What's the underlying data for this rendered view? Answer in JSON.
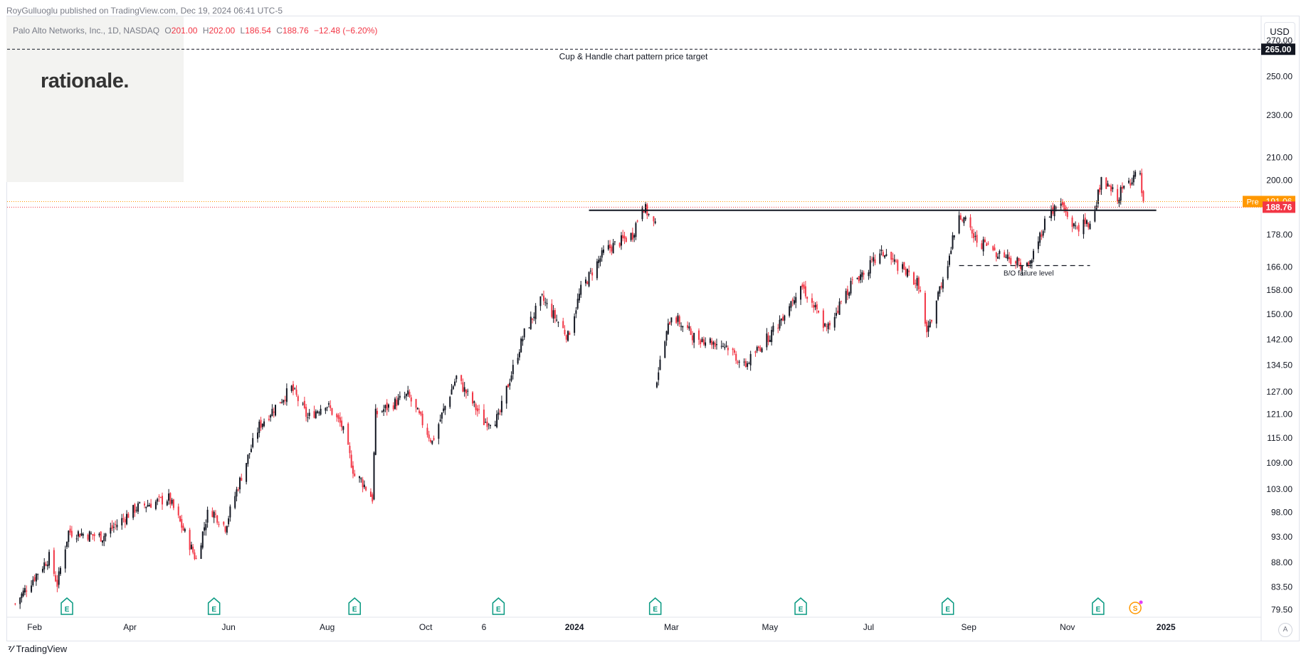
{
  "header": {
    "publisher": "RoyGulluoglu published on TradingView.com, Dec 19, 2024 06:41 UTC-5",
    "symbol": "Palo Alto Networks, Inc., 1D, NASDAQ",
    "o_label": "O",
    "o_value": "201.00",
    "h_label": "H",
    "h_value": "202.00",
    "l_label": "L",
    "l_value": "186.54",
    "c_label": "C",
    "c_value": "188.76",
    "change": "−12.48 (−6.20%)"
  },
  "brand": "rationale.",
  "currency": "USD",
  "footer": {
    "logo_mark": "⁷⁄",
    "logo_text": "TradingView"
  },
  "colors": {
    "up": "#131722",
    "down": "#f23645",
    "pre_badge": "#ff9800",
    "last_badge": "#f23645"
  },
  "chart_data": {
    "type": "candlestick",
    "title": "Palo Alto Networks, Inc., 1D, NASDAQ",
    "y_scale": "log",
    "ylim": [
      78,
      275
    ],
    "y_ticks": [
      {
        "value": 270,
        "label": "270.00"
      },
      {
        "value": 250,
        "label": "250.00"
      },
      {
        "value": 230,
        "label": "230.00"
      },
      {
        "value": 210,
        "label": "210.00"
      },
      {
        "value": 200,
        "label": "200.00"
      },
      {
        "value": 178,
        "label": "178.00"
      },
      {
        "value": 166,
        "label": "166.00"
      },
      {
        "value": 158,
        "label": "158.00"
      },
      {
        "value": 150,
        "label": "150.00"
      },
      {
        "value": 142,
        "label": "142.00"
      },
      {
        "value": 134.5,
        "label": "134.50"
      },
      {
        "value": 127,
        "label": "127.00"
      },
      {
        "value": 121,
        "label": "121.00"
      },
      {
        "value": 115,
        "label": "115.00"
      },
      {
        "value": 109,
        "label": "109.00"
      },
      {
        "value": 103,
        "label": "103.00"
      },
      {
        "value": 98,
        "label": "98.00"
      },
      {
        "value": 93,
        "label": "93.00"
      },
      {
        "value": 88,
        "label": "88.00"
      },
      {
        "value": 83.5,
        "label": "83.50"
      },
      {
        "value": 79.5,
        "label": "79.50"
      }
    ],
    "x_ticks": [
      {
        "date": "2023-02-01",
        "label": "Feb",
        "bold": false
      },
      {
        "date": "2023-04-01",
        "label": "Apr",
        "bold": false
      },
      {
        "date": "2023-06-01",
        "label": "Jun",
        "bold": false
      },
      {
        "date": "2023-08-01",
        "label": "Aug",
        "bold": false
      },
      {
        "date": "2023-10-01",
        "label": "Oct",
        "bold": false
      },
      {
        "date": "2023-11-06",
        "label": "6",
        "bold": false
      },
      {
        "date": "2024-01-01",
        "label": "2024",
        "bold": true
      },
      {
        "date": "2024-03-01",
        "label": "Mar",
        "bold": false
      },
      {
        "date": "2024-05-01",
        "label": "May",
        "bold": false
      },
      {
        "date": "2024-07-01",
        "label": "Jul",
        "bold": false
      },
      {
        "date": "2024-09-01",
        "label": "Sep",
        "bold": false
      },
      {
        "date": "2024-11-01",
        "label": "Nov",
        "bold": false
      },
      {
        "date": "2025-01-01",
        "label": "2025",
        "bold": true
      }
    ],
    "price_path": [
      {
        "date": "2023-01-20",
        "price": 80.5
      },
      {
        "date": "2023-02-10",
        "price": 89
      },
      {
        "date": "2023-02-15",
        "price": 84
      },
      {
        "date": "2023-02-22",
        "price": 94
      },
      {
        "date": "2023-03-15",
        "price": 93
      },
      {
        "date": "2023-04-05",
        "price": 99
      },
      {
        "date": "2023-04-25",
        "price": 101
      },
      {
        "date": "2023-05-12",
        "price": 88.5
      },
      {
        "date": "2023-05-20",
        "price": 99
      },
      {
        "date": "2023-05-30",
        "price": 95
      },
      {
        "date": "2023-06-20",
        "price": 118
      },
      {
        "date": "2023-07-10",
        "price": 128
      },
      {
        "date": "2023-07-20",
        "price": 120
      },
      {
        "date": "2023-07-31",
        "price": 124
      },
      {
        "date": "2023-08-10",
        "price": 118
      },
      {
        "date": "2023-08-18",
        "price": 106
      },
      {
        "date": "2023-08-22",
        "price": 105
      },
      {
        "date": "2023-08-29",
        "price": 101
      },
      {
        "date": "2023-08-31",
        "price": 121
      },
      {
        "date": "2023-09-20",
        "price": 126
      },
      {
        "date": "2023-10-05",
        "price": 114
      },
      {
        "date": "2023-10-20",
        "price": 131
      },
      {
        "date": "2023-11-06",
        "price": 119
      },
      {
        "date": "2023-11-15",
        "price": 120
      },
      {
        "date": "2023-12-01",
        "price": 144
      },
      {
        "date": "2023-12-12",
        "price": 155
      },
      {
        "date": "2023-12-28",
        "price": 143
      },
      {
        "date": "2024-01-05",
        "price": 158
      },
      {
        "date": "2024-01-20",
        "price": 172
      },
      {
        "date": "2024-02-06",
        "price": 178
      },
      {
        "date": "2024-02-12",
        "price": 190
      },
      {
        "date": "2024-02-20",
        "price": 181
      },
      {
        "date": "2024-02-21",
        "price": 131
      },
      {
        "date": "2024-03-01",
        "price": 150
      },
      {
        "date": "2024-03-15",
        "price": 143
      },
      {
        "date": "2024-04-05",
        "price": 140
      },
      {
        "date": "2024-04-15",
        "price": 134
      },
      {
        "date": "2024-05-05",
        "price": 146
      },
      {
        "date": "2024-05-20",
        "price": 160
      },
      {
        "date": "2024-06-05",
        "price": 145
      },
      {
        "date": "2024-06-20",
        "price": 160
      },
      {
        "date": "2024-07-10",
        "price": 171
      },
      {
        "date": "2024-08-01",
        "price": 160
      },
      {
        "date": "2024-08-06",
        "price": 143
      },
      {
        "date": "2024-08-20",
        "price": 170
      },
      {
        "date": "2024-08-26",
        "price": 187
      },
      {
        "date": "2024-09-05",
        "price": 176
      },
      {
        "date": "2024-09-20",
        "price": 171
      },
      {
        "date": "2024-10-08",
        "price": 166
      },
      {
        "date": "2024-10-20",
        "price": 186
      },
      {
        "date": "2024-10-28",
        "price": 190
      },
      {
        "date": "2024-11-05",
        "price": 181
      },
      {
        "date": "2024-11-15",
        "price": 182
      },
      {
        "date": "2024-11-22",
        "price": 199
      },
      {
        "date": "2024-12-02",
        "price": 193
      },
      {
        "date": "2024-12-12",
        "price": 202
      },
      {
        "date": "2024-12-16",
        "price": 201
      },
      {
        "date": "2024-12-18",
        "price": 188.76
      }
    ],
    "key_lines": {
      "target": {
        "value": 265,
        "label": "265.00",
        "annotation": "Cup & Handle chart pattern price target",
        "start": "2023-01-15",
        "end": "2025-02-20"
      },
      "resistance": {
        "value": 187.5,
        "start": "2024-01-10",
        "end": "2024-12-26"
      },
      "failure": {
        "value": 166.5,
        "annotation": "B/O failure level",
        "start": "2024-08-26",
        "end": "2024-11-15"
      },
      "pre_market": {
        "value": 191.06,
        "badge": "Pre",
        "label": "191.06"
      },
      "last": {
        "value": 188.76,
        "label": "188.76"
      }
    },
    "earnings_markers": [
      {
        "date": "2023-02-21",
        "label": "E"
      },
      {
        "date": "2023-05-23",
        "label": "E"
      },
      {
        "date": "2023-08-18",
        "label": "E"
      },
      {
        "date": "2023-11-15",
        "label": "E"
      },
      {
        "date": "2024-02-20",
        "label": "E"
      },
      {
        "date": "2024-05-20",
        "label": "E"
      },
      {
        "date": "2024-08-19",
        "label": "E"
      },
      {
        "date": "2024-11-20",
        "label": "E"
      }
    ],
    "dividend_marker": {
      "date": "2024-12-13",
      "label": "S"
    }
  }
}
